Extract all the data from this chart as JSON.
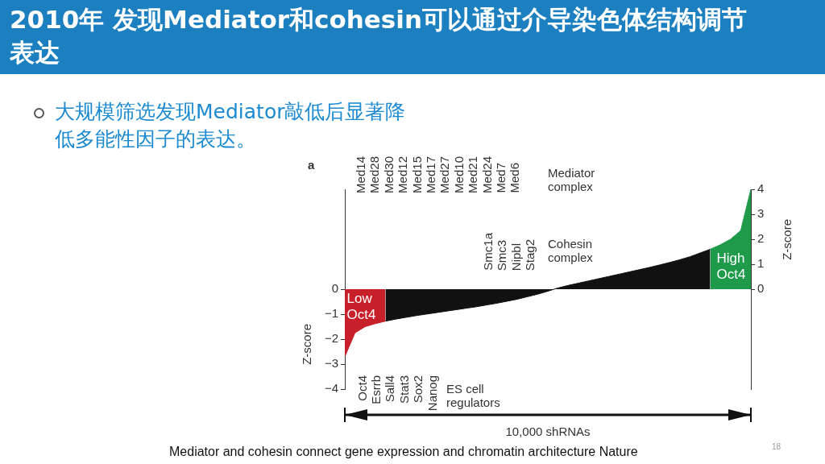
{
  "chart_data": {
    "type": "area",
    "title": "2010年 发现Mediator和cohesin可以通过介导染色体结构调节表达",
    "subtitle": "大规模筛选发现Mediator敲低后显著降低多能性因子的表达。",
    "xlabel": "10,000 shRNAs",
    "ylabel": "Z-score",
    "y2label": "Z-score",
    "categories": [
      null,
      null,
      null,
      null,
      null,
      null,
      null,
      null,
      null,
      null,
      null,
      null,
      null,
      null,
      null,
      null,
      null,
      null,
      null,
      null,
      null,
      null,
      null,
      null,
      null,
      null,
      null,
      null,
      null,
      null,
      null,
      null,
      null,
      null,
      null,
      null,
      null,
      null,
      null,
      null,
      null
    ],
    "series": [
      {
        "color": "#c8202a",
        "values": [
          -2.7,
          -1.75,
          -1.5,
          -1.38,
          -1.28,
          null,
          null,
          null,
          null,
          null,
          null,
          null,
          null,
          null,
          null,
          null,
          null,
          null,
          null,
          null,
          null,
          null,
          null,
          null,
          null,
          null,
          null,
          null,
          null,
          null,
          null,
          null,
          null,
          null,
          null,
          null,
          null,
          null,
          null,
          null,
          null
        ]
      },
      {
        "color": "#111111",
        "values": [
          null,
          null,
          null,
          null,
          -1.28,
          -1.2,
          -1.13,
          -1.06,
          -1.0,
          -0.94,
          -0.88,
          -0.82,
          -0.76,
          -0.7,
          -0.63,
          -0.56,
          -0.48,
          -0.4,
          -0.3,
          -0.2,
          -0.08,
          0.05,
          0.15,
          0.24,
          0.33,
          0.42,
          0.51,
          0.6,
          0.69,
          0.78,
          0.87,
          0.97,
          1.07,
          1.18,
          1.3,
          1.45,
          1.6,
          null,
          null,
          null,
          null
        ]
      },
      {
        "color": "#1f9a4a",
        "values": [
          null,
          null,
          null,
          null,
          null,
          null,
          null,
          null,
          null,
          null,
          null,
          null,
          null,
          null,
          null,
          null,
          null,
          null,
          null,
          null,
          null,
          null,
          null,
          null,
          null,
          null,
          null,
          null,
          null,
          null,
          null,
          null,
          null,
          null,
          null,
          null,
          1.6,
          1.78,
          2.0,
          2.35,
          4.0
        ]
      }
    ],
    "ylim": [
      -4,
      4
    ],
    "yticks": [
      -4,
      -3,
      -2,
      -1,
      0
    ],
    "y2lim": [
      -4,
      4
    ],
    "y2ticks": [
      0,
      1,
      2,
      3,
      4
    ],
    "grid": false,
    "legend": false,
    "annotations": [
      "a",
      "Med14",
      "Med28",
      "Med30",
      "Med12",
      "Med15",
      "Med17",
      "Med27",
      "Med10",
      "Med21",
      "Med24",
      "Med7",
      "Med6",
      "Mediator complex",
      "Smc1a",
      "Smc3",
      "Nipbl",
      "Stag2",
      "Cohesin complex",
      "Oct4",
      "Esrrb",
      "Sall4",
      "Stat3",
      "Sox2",
      "Nanog",
      "ES cell regulators",
      "Low Oct4",
      "High Oct4",
      "Mediator and cohesin connect gene expression and chromatin architecture Nature",
      "18"
    ]
  }
}
